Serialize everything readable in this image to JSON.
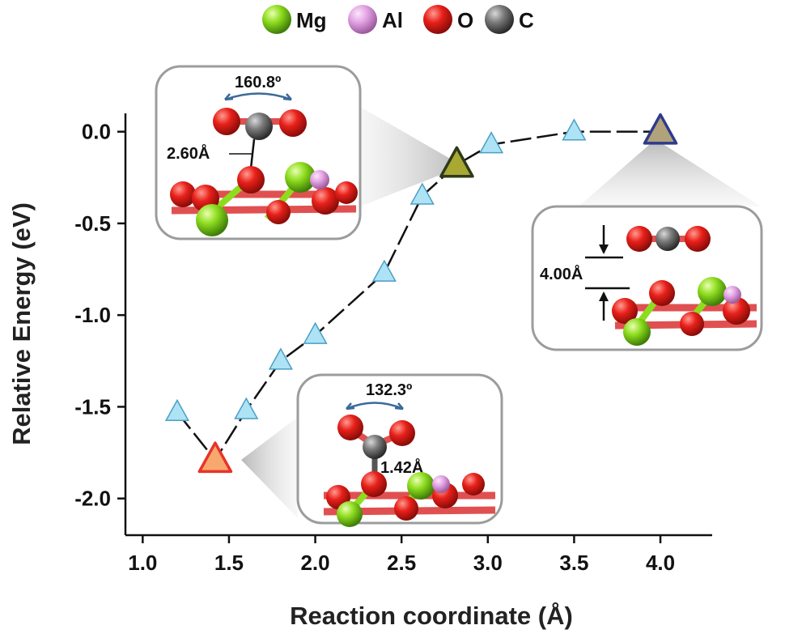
{
  "chart_data": {
    "type": "line",
    "title": "",
    "xlabel": "Reaction coordinate (Å)",
    "ylabel": "Relative Energy (eV)",
    "xlim": [
      0.9,
      4.3
    ],
    "ylim": [
      -2.2,
      0.1
    ],
    "xticks": [
      1.0,
      1.5,
      2.0,
      2.5,
      3.0,
      3.5,
      4.0
    ],
    "xtick_labels": [
      "1.0",
      "1.5",
      "2.0",
      "2.5",
      "3.0",
      "3.5",
      "4.0"
    ],
    "yticks": [
      0.0,
      -0.5,
      -1.0,
      -1.5,
      -2.0
    ],
    "ytick_labels": [
      "0.0",
      "-0.5",
      "-1.0",
      "-1.5",
      "-2.0"
    ],
    "grid": false,
    "series": [
      {
        "x": [
          1.2,
          1.42,
          1.6,
          1.8,
          2.0,
          2.4,
          2.62,
          2.82,
          3.02,
          3.5,
          4.0
        ],
        "y": [
          -1.53,
          -1.79,
          -1.52,
          -1.25,
          -1.11,
          -0.77,
          -0.35,
          -0.18,
          -0.07,
          0.0,
          0.0
        ],
        "color": "#aee3f5"
      }
    ],
    "highlighted_points": [
      {
        "x": 1.42,
        "y": -1.79,
        "fill": "#f6a86e",
        "stroke": "#e8332a"
      },
      {
        "x": 2.82,
        "y": -0.18,
        "fill": "#a8a832",
        "stroke": "#2d3a1a"
      },
      {
        "x": 4.0,
        "y": 0.0,
        "fill": "#b0a27a",
        "stroke": "#2e3a8c"
      }
    ],
    "legend": {
      "placement": "top-center",
      "entries": [
        {
          "label": "Mg",
          "color": "#8ddc1e"
        },
        {
          "label": "Al",
          "color": "#e3a3e3"
        },
        {
          "label": "O",
          "color": "#e8201a"
        },
        {
          "label": "C",
          "color": "#6a6a6a"
        }
      ]
    },
    "annotations": {
      "inset_top_left": {
        "angle": "160.8º",
        "distance": "2.60Å"
      },
      "inset_bottom": {
        "angle": "132.3º",
        "distance": "1.42Å"
      },
      "inset_right": {
        "distance": "4.00Å"
      }
    }
  }
}
